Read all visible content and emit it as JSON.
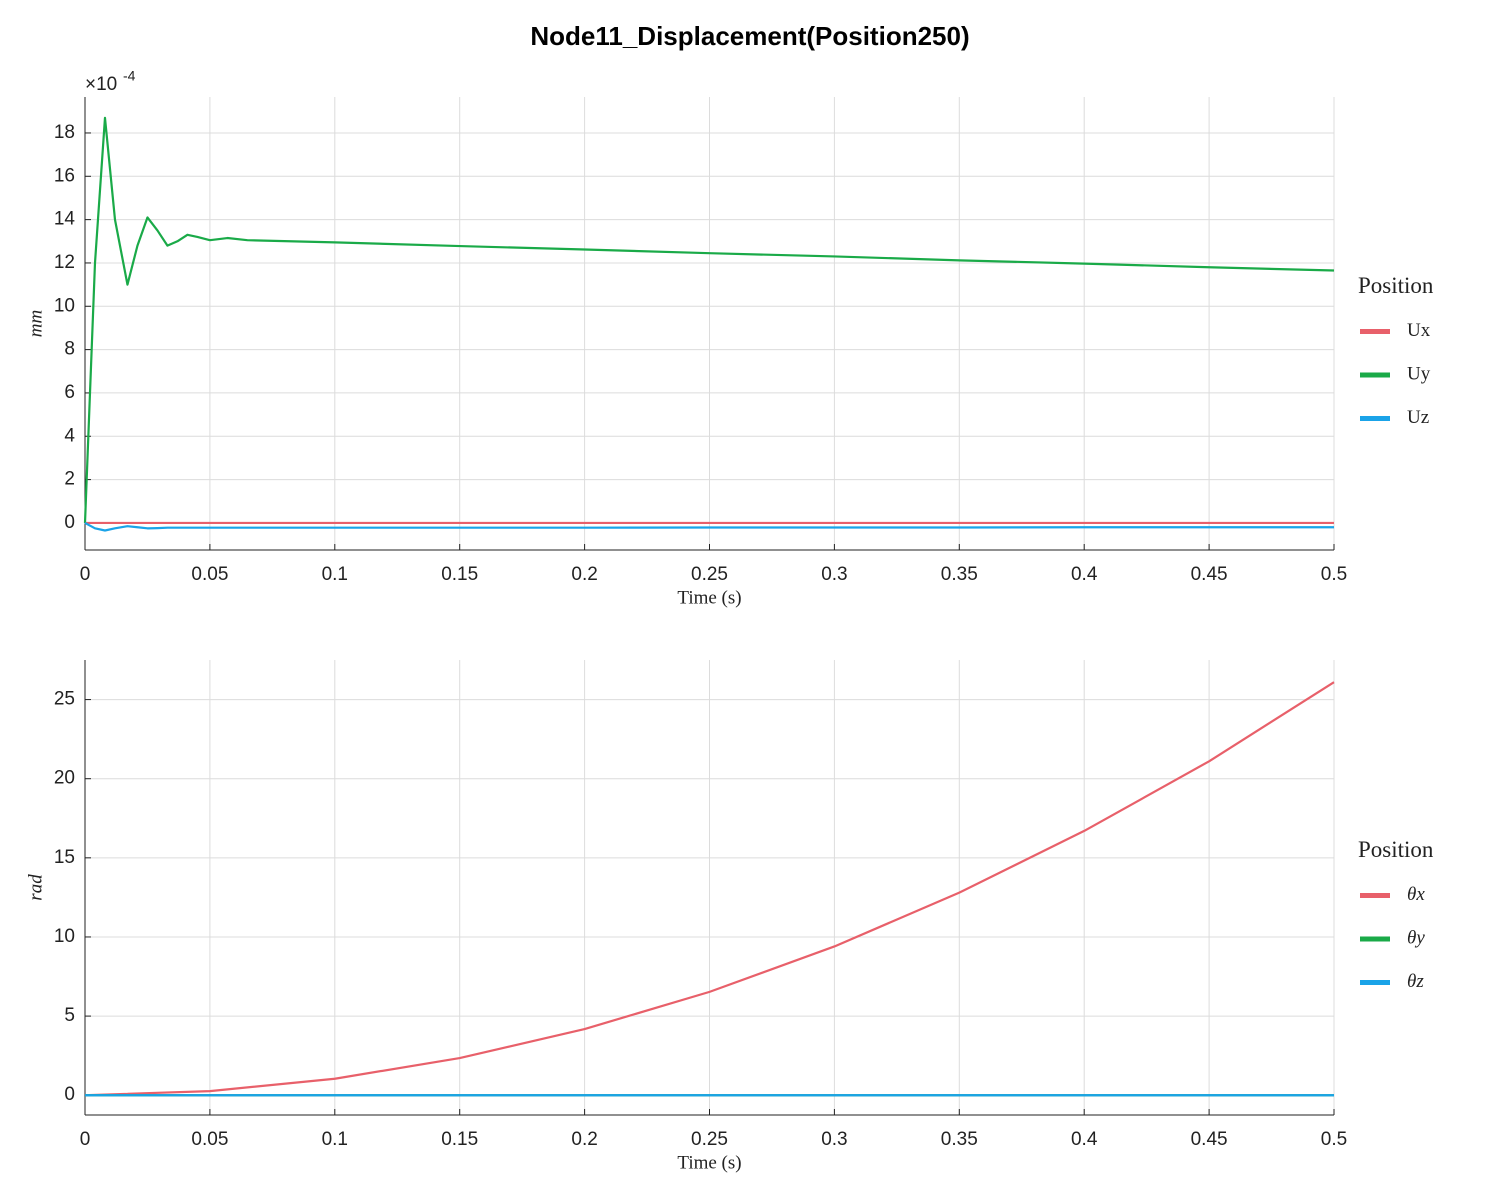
{
  "title": "Node11_Displacement(Position250)",
  "chart_data": [
    {
      "type": "line",
      "ylabel": "mm",
      "xlabel": "Time (s)",
      "y_multiplier": {
        "base": "×10",
        "exponent": "-4"
      },
      "legend_title": "Position",
      "legend": "right",
      "grid": true,
      "xlim": [
        0,
        0.5
      ],
      "xticks": [
        0,
        0.05,
        0.1,
        0.15,
        0.2,
        0.25,
        0.3,
        0.35,
        0.4,
        0.45,
        0.5
      ],
      "ylim": [
        -1.25,
        19.66
      ],
      "yticks": [
        0,
        2,
        4,
        6,
        8,
        10,
        12,
        14,
        16,
        18
      ],
      "x": [
        0,
        0.004,
        0.008,
        0.012,
        0.017,
        0.021,
        0.025,
        0.029,
        0.033,
        0.037,
        0.041,
        0.045,
        0.05,
        0.057,
        0.065,
        0.1,
        0.15,
        0.2,
        0.25,
        0.3,
        0.35,
        0.4,
        0.45,
        0.5
      ],
      "series": [
        {
          "name": "Ux",
          "color": "#e8606a",
          "values": [
            0,
            0,
            0,
            0,
            0,
            0,
            0,
            0,
            0,
            0,
            0,
            0,
            0,
            0,
            0,
            0,
            0,
            0,
            0,
            0,
            0,
            0,
            0,
            0
          ]
        },
        {
          "name": "Uy",
          "color": "#1aaa48",
          "values": [
            0,
            12,
            18.7,
            14,
            11.0,
            12.8,
            14.1,
            13.5,
            12.8,
            13.0,
            13.3,
            13.2,
            13.05,
            13.15,
            13.05,
            12.95,
            12.78,
            12.62,
            12.45,
            12.3,
            12.12,
            11.97,
            11.8,
            11.65
          ]
        },
        {
          "name": "Uz",
          "color": "#1aa3e8",
          "values": [
            0,
            -0.25,
            -0.35,
            -0.25,
            -0.15,
            -0.2,
            -0.25,
            -0.24,
            -0.22,
            -0.22,
            -0.22,
            -0.22,
            -0.22,
            -0.22,
            -0.22,
            -0.22,
            -0.22,
            -0.22,
            -0.21,
            -0.21,
            -0.21,
            -0.2,
            -0.2,
            -0.2
          ]
        }
      ]
    },
    {
      "type": "line",
      "ylabel": "rad",
      "xlabel": "Time (s)",
      "legend_title": "Position",
      "legend": "right",
      "grid": true,
      "xlim": [
        0,
        0.5
      ],
      "xticks": [
        0,
        0.05,
        0.1,
        0.15,
        0.2,
        0.25,
        0.3,
        0.35,
        0.4,
        0.45,
        0.5
      ],
      "ylim": [
        -1.25,
        27.5
      ],
      "yticks": [
        0,
        5,
        10,
        15,
        20,
        25
      ],
      "x": [
        0,
        0.05,
        0.1,
        0.15,
        0.2,
        0.25,
        0.3,
        0.35,
        0.4,
        0.45,
        0.5
      ],
      "series": [
        {
          "name": "θx",
          "color": "#e8606a",
          "values": [
            0,
            0.26,
            1.04,
            2.35,
            4.18,
            6.53,
            9.4,
            12.8,
            16.7,
            21.1,
            26.1
          ]
        },
        {
          "name": "θy",
          "color": "#1aaa48",
          "values": [
            0,
            0,
            0,
            0,
            0,
            0,
            0,
            0,
            0,
            0,
            0
          ]
        },
        {
          "name": "θz",
          "color": "#1aa3e8",
          "values": [
            0,
            0,
            0,
            0,
            0,
            0,
            0,
            0,
            0,
            0,
            0
          ]
        }
      ]
    }
  ]
}
